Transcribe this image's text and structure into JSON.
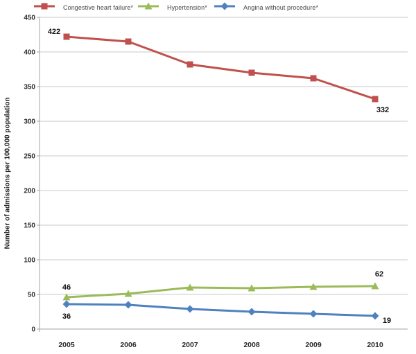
{
  "chart_data": {
    "type": "line",
    "x": [
      "2005",
      "2006",
      "2007",
      "2008",
      "2009",
      "2010"
    ],
    "series": [
      {
        "name": "Congestive heart failure*",
        "color": "#C0504D",
        "marker": "square",
        "values": [
          422,
          415,
          382,
          370,
          362,
          332
        ]
      },
      {
        "name": "Hypertension*",
        "color": "#9BBB59",
        "marker": "triangle",
        "values": [
          46,
          51,
          60,
          59,
          61,
          62
        ]
      },
      {
        "name": "Angina without procedure*",
        "color": "#4F81BD",
        "marker": "diamond",
        "values": [
          36,
          35,
          29,
          25,
          22,
          19
        ]
      }
    ],
    "ylabel": "Number of admissions per 100,000 population",
    "ylim": [
      0,
      450
    ],
    "ytick_step": 50,
    "yticks": [
      450,
      400,
      350,
      300,
      250,
      200,
      150,
      100,
      50,
      0
    ],
    "grid": true,
    "legend_position": "top",
    "annotations": [
      {
        "series": 0,
        "point": 0,
        "text": "422",
        "placement": "above-left"
      },
      {
        "series": 0,
        "point": 5,
        "text": "332",
        "placement": "below-right"
      },
      {
        "series": 1,
        "point": 0,
        "text": "46",
        "placement": "above"
      },
      {
        "series": 1,
        "point": 5,
        "text": "62",
        "placement": "above-right"
      },
      {
        "series": 2,
        "point": 0,
        "text": "36",
        "placement": "below"
      },
      {
        "series": 2,
        "point": 5,
        "text": "19",
        "placement": "right-below"
      }
    ],
    "colors": {
      "gridline": "#C8C8C8",
      "axis": "#A3A3A3",
      "background": "#FFFFFF"
    }
  }
}
